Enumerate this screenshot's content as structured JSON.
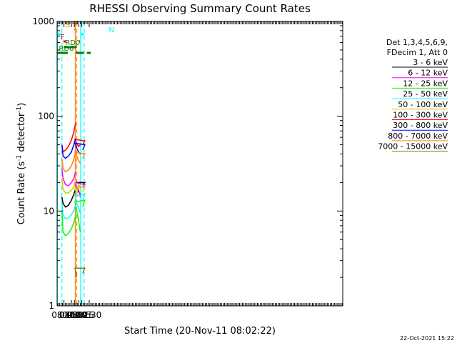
{
  "chart_data": {
    "type": "line",
    "title": "RHESSI Observing Summary Count Rates",
    "xlabel": "Start Time (20-Nov-11 08:02:22)",
    "ylabel_main": "Count Rate (s",
    "ylabel_sup1": "-1",
    "ylabel_mid": " detector",
    "ylabel_sup2": "-1",
    "ylabel_end": ")",
    "yscale": "log",
    "ylim": [
      1,
      1000
    ],
    "xlim_minutes": [
      8.0333,
      24.0333
    ],
    "x_ticks": [
      {
        "m": 8.25,
        "label": "08:15"
      },
      {
        "m": 8.5,
        "label": "08:30"
      },
      {
        "m": 8.75,
        "label": "08:45"
      },
      {
        "m": 9.0,
        "label": "09:00"
      },
      {
        "m": 9.25,
        "label": "09:15"
      },
      {
        "m": 9.5,
        "label": "09:30"
      }
    ],
    "y_ticks": [
      {
        "v": 1,
        "label": "1"
      },
      {
        "v": 10,
        "label": "10"
      },
      {
        "v": 100,
        "label": "100"
      },
      {
        "v": 1000,
        "label": "1000"
      }
    ],
    "legend_header": [
      "Det 1,3,4,5,6,9,",
      "FDecim 1, Att 0"
    ],
    "series": [
      {
        "name": "3 - 6 keV",
        "color": "#000000",
        "seg1": [
          [
            8.18,
            14
          ],
          [
            8.22,
            12
          ],
          [
            8.3,
            11
          ],
          [
            8.4,
            11.5
          ],
          [
            8.5,
            13
          ],
          [
            8.58,
            15
          ],
          [
            8.64,
            17
          ]
        ],
        "seg2": [
          [
            8.88,
            19
          ],
          [
            8.95,
            20
          ],
          [
            9.02,
            20
          ],
          [
            9.08,
            18
          ],
          [
            9.14,
            16
          ],
          [
            9.2,
            15
          ]
        ]
      },
      {
        "name": "6 - 12 keV",
        "color": "#ff00ff",
        "seg1": [
          [
            8.18,
            28
          ],
          [
            8.22,
            22
          ],
          [
            8.3,
            19
          ],
          [
            8.4,
            18.5
          ],
          [
            8.5,
            20
          ],
          [
            8.58,
            22
          ],
          [
            8.64,
            26
          ]
        ],
        "seg2": [
          [
            8.88,
            18
          ],
          [
            8.95,
            19
          ],
          [
            9.02,
            20
          ],
          [
            9.08,
            18
          ],
          [
            9.14,
            17
          ],
          [
            9.2,
            14
          ]
        ]
      },
      {
        "name": "12 - 25 keV",
        "color": "#00ff00",
        "seg1": [
          [
            8.18,
            10
          ],
          [
            8.22,
            6
          ],
          [
            8.3,
            5.5
          ],
          [
            8.4,
            5.8
          ],
          [
            8.5,
            6.5
          ],
          [
            8.58,
            7.5
          ],
          [
            8.64,
            9
          ]
        ],
        "seg2": [
          [
            8.88,
            11
          ],
          [
            8.95,
            13
          ],
          [
            9.02,
            12.5
          ],
          [
            9.08,
            10
          ],
          [
            9.14,
            8
          ],
          [
            9.2,
            6
          ]
        ]
      },
      {
        "name": "25 - 50 keV",
        "color": "#00ffff",
        "seg1": [
          [
            8.18,
            12
          ],
          [
            8.22,
            9
          ],
          [
            8.3,
            8.3
          ],
          [
            8.4,
            8.5
          ],
          [
            8.5,
            9.2
          ],
          [
            8.58,
            10
          ],
          [
            8.64,
            11.5
          ]
        ],
        "seg2": [
          [
            8.88,
            13
          ],
          [
            8.95,
            15
          ],
          [
            9.02,
            14.5
          ],
          [
            9.08,
            12
          ],
          [
            9.14,
            11
          ],
          [
            9.2,
            9.5
          ]
        ]
      },
      {
        "name": "50 - 100 keV",
        "color": "#cccc00",
        "seg1": [
          [
            8.18,
            22
          ],
          [
            8.22,
            17
          ],
          [
            8.3,
            15.5
          ],
          [
            8.4,
            15.5
          ],
          [
            8.5,
            16.5
          ],
          [
            8.58,
            18
          ],
          [
            8.64,
            21
          ]
        ],
        "seg2": [
          [
            8.88,
            16
          ],
          [
            8.95,
            18
          ],
          [
            9.02,
            17.5
          ],
          [
            9.08,
            15
          ],
          [
            9.14,
            19
          ],
          [
            9.2,
            18
          ]
        ]
      },
      {
        "name": "100 - 300 keV",
        "color": "#ff0000",
        "seg1": [
          [
            8.18,
            50
          ],
          [
            8.22,
            42
          ],
          [
            8.3,
            44
          ],
          [
            8.4,
            48
          ],
          [
            8.5,
            56
          ],
          [
            8.58,
            68
          ],
          [
            8.64,
            85
          ]
        ],
        "seg2": [
          [
            8.88,
            50
          ],
          [
            8.95,
            55
          ],
          [
            9.02,
            57
          ],
          [
            9.08,
            52
          ],
          [
            9.14,
            48
          ],
          [
            9.2,
            50
          ]
        ]
      },
      {
        "name": "300 - 800 keV",
        "color": "#0000ff",
        "seg1": [
          [
            8.18,
            50
          ],
          [
            8.22,
            38
          ],
          [
            8.3,
            36
          ],
          [
            8.4,
            38
          ],
          [
            8.5,
            42
          ],
          [
            8.58,
            50
          ],
          [
            8.64,
            58
          ]
        ],
        "seg2": [
          [
            8.88,
            44
          ],
          [
            8.95,
            50
          ],
          [
            9.02,
            52
          ],
          [
            9.08,
            46
          ],
          [
            9.14,
            42
          ],
          [
            9.2,
            40
          ]
        ]
      },
      {
        "name": "800 - 7000 keV",
        "color": "#ff8000",
        "seg1": [
          [
            8.18,
            36
          ],
          [
            8.22,
            28
          ],
          [
            8.3,
            26
          ],
          [
            8.4,
            27
          ],
          [
            8.5,
            30
          ],
          [
            8.58,
            35
          ],
          [
            8.64,
            42
          ]
        ],
        "seg2": [
          [
            8.88,
            36
          ],
          [
            8.95,
            40
          ],
          [
            9.02,
            42
          ],
          [
            9.08,
            38
          ],
          [
            9.14,
            34
          ],
          [
            9.2,
            32
          ]
        ]
      },
      {
        "name": "7000 - 15000 keV",
        "color": "#808000",
        "seg1": [],
        "seg2": [
          [
            8.88,
            2.2
          ],
          [
            8.95,
            2.5
          ],
          [
            9.02,
            2.5
          ],
          [
            9.08,
            2.0
          ]
        ]
      }
    ],
    "data_gaps": [
      {
        "start": 8.17,
        "end": 8.18
      },
      {
        "start": 8.64,
        "end": 8.78
      },
      {
        "start": 9.2,
        "end": 9.22
      }
    ],
    "flag_bars": [
      {
        "label": "N",
        "color": "#00ffff",
        "start": 8.03,
        "end": 8.18
      },
      {
        "label": "N",
        "color": "#00ffff",
        "start": 9.21,
        "end": 9.33
      },
      {
        "label": "S",
        "color": "#ff8000",
        "start": 8.59,
        "end": 8.64
      },
      {
        "label": "F",
        "color": "#ff0000",
        "start": 8.23,
        "end": 8.32
      },
      {
        "label": "F",
        "color": "#ff0000",
        "start": 8.79,
        "end": 9.15
      },
      {
        "label": "RD0",
        "color": "#008000",
        "start": 8.24,
        "end": 8.68
      },
      {
        "label": "RD6",
        "color": "#008000",
        "start": 8.03,
        "end": 8.38
      },
      {
        "label": "RD6",
        "color": "#008000",
        "start": 8.72,
        "end": 9.05
      },
      {
        "label": "RD6",
        "color": "#008000",
        "start": 9.09,
        "end": 9.32
      },
      {
        "label": "RD6",
        "color": "#008000",
        "start": 9.42,
        "end": 9.55
      }
    ],
    "vertical_lines": [
      {
        "color": "#00ffff",
        "m": 8.03,
        "style": "solid"
      },
      {
        "color": "#00ffff",
        "m": 8.18,
        "style": "dash"
      },
      {
        "color": "#ff8000",
        "m": 8.63,
        "style": "solid"
      },
      {
        "color": "#ff8000",
        "m": 8.68,
        "style": "dash"
      },
      {
        "color": "#00ffff",
        "m": 9.21,
        "style": "solid"
      },
      {
        "color": "#00ffff",
        "m": 9.33,
        "style": "dash"
      }
    ],
    "grid": false,
    "legend_position": "right"
  },
  "footer_date": "22-Oct-2021 15:22"
}
